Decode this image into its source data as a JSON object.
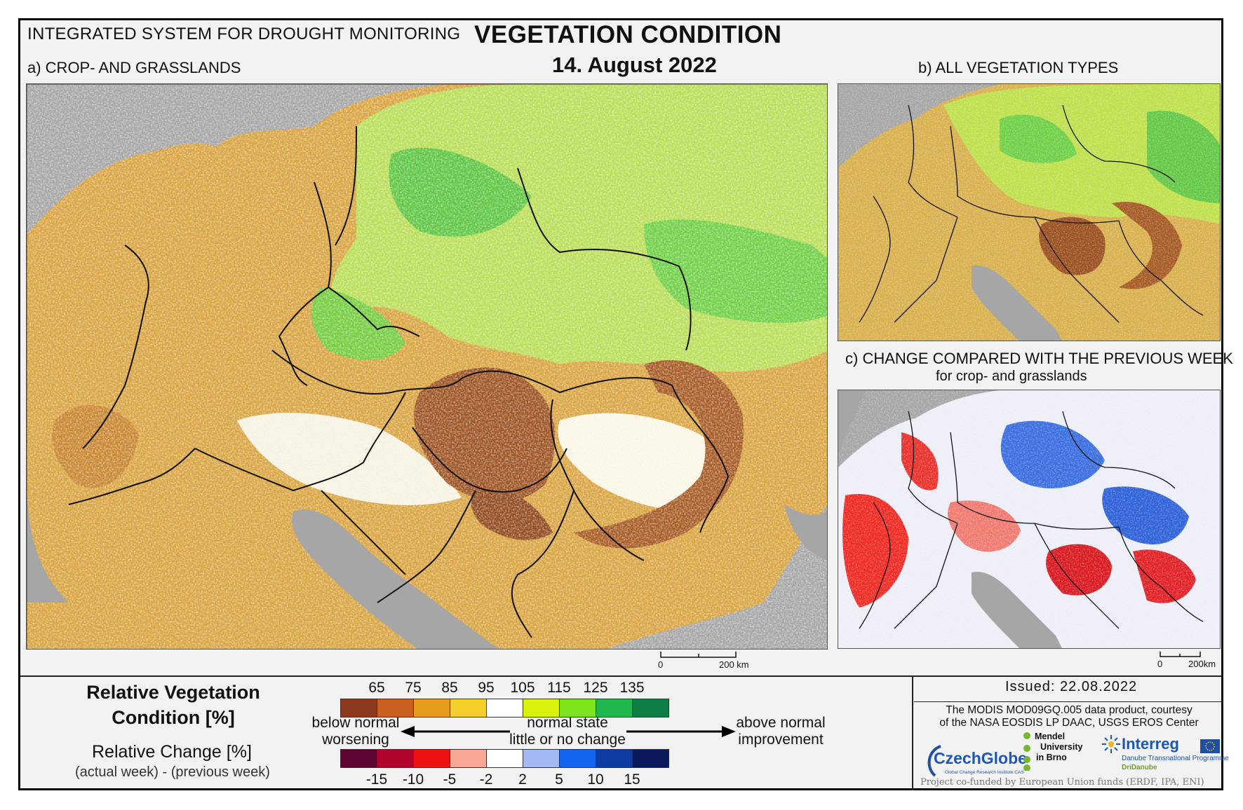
{
  "header": {
    "system_title": "INTEGRATED SYSTEM FOR DROUGHT MONITORING",
    "main_title": "VEGETATION CONDITION",
    "date": "14. August 2022"
  },
  "panels": {
    "a_label": "a) CROP- AND GRASSLANDS",
    "b_label": "b) ALL VEGETATION TYPES",
    "c_label": "c) CHANGE COMPARED WITH THE PREVIOUS WEEK",
    "c_sublabel": "for crop- and grasslands"
  },
  "scalebars": {
    "a": {
      "zero": "0",
      "end": "200 km"
    },
    "c": {
      "zero": "0",
      "end": "200km"
    }
  },
  "legend": {
    "title_line1": "Relative Vegetation",
    "title_line2": "Condition [%]",
    "change_title": "Relative Change [%]",
    "change_subtitle": "(actual week) - (previous week)",
    "below_normal": "below normal",
    "worsening": "worsening",
    "normal_state": "normal state",
    "little_change": "little or no change",
    "above_normal": "above normal",
    "improvement": "improvement",
    "condition_ticks": [
      "65",
      "75",
      "85",
      "95",
      "105",
      "115",
      "125",
      "135"
    ],
    "condition_colors": [
      "#8b3a20",
      "#c8601f",
      "#e69c1c",
      "#f5d02b",
      "#ffffff",
      "#d8f20e",
      "#7ee41b",
      "#1fb84f",
      "#0b7d45"
    ],
    "change_ticks": [
      "-15",
      "-10",
      "-5",
      "-2",
      "2",
      "5",
      "10",
      "15"
    ],
    "change_colors": [
      "#5c0530",
      "#b3042e",
      "#ed1112",
      "#f8a894",
      "#ffffff",
      "#a4b8f2",
      "#1363f0",
      "#0c3ca0",
      "#0a1a5c"
    ]
  },
  "footer": {
    "issued": "Issued: 22.08.2022",
    "courtesy_line1": "The MODIS MOD09GQ.005 data product, courtesy",
    "courtesy_line2": "of the NASA EOSDIS LP DAAC, USGS EROS Center",
    "czechglobe": "CzechGlobe",
    "czechglobe_sub": "Global Change Research Institute CAS",
    "mendel_line1": "Mendel",
    "mendel_line2": "University",
    "mendel_line3": "in Brno",
    "interreg": "Interreg",
    "interreg_sub": "Danube Transnational Programme",
    "interreg_sub2": "DriDanube",
    "funded": "Project co-funded by European Union funds (ERDF, IPA, ENI)"
  }
}
